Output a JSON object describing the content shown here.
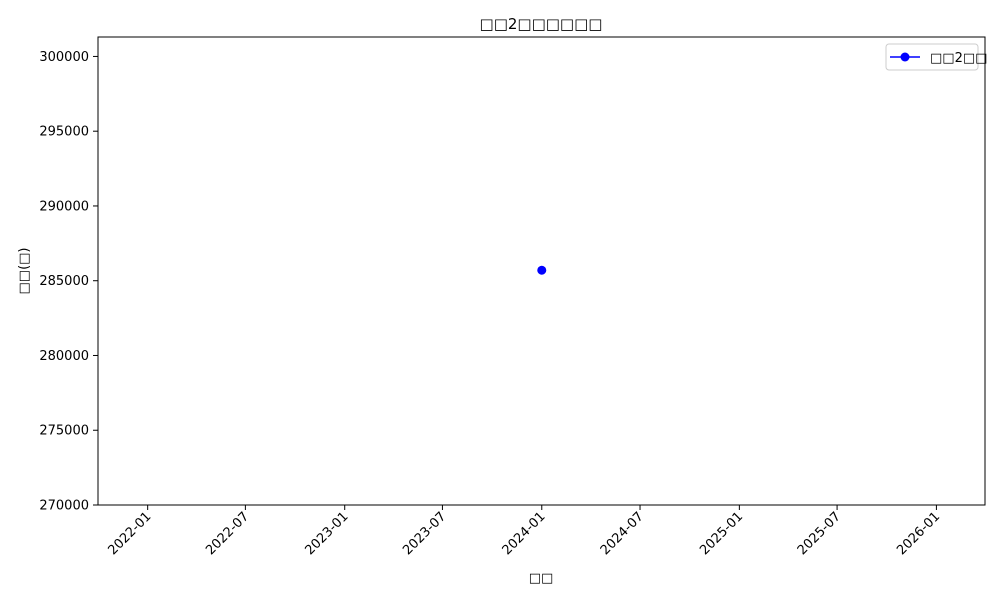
{
  "chart_data": {
    "type": "line",
    "title": "□□2□□□□□□",
    "xlabel": "□□",
    "ylabel": "□□(□)",
    "x_axis": {
      "kind": "date",
      "range": [
        "2021-10-01",
        "2026-04-01"
      ],
      "ticks": [
        "2022-01",
        "2022-07",
        "2023-01",
        "2023-07",
        "2024-01",
        "2024-07",
        "2025-01",
        "2025-07",
        "2026-01"
      ]
    },
    "y_axis": {
      "range": [
        270000,
        301300
      ],
      "ticks": [
        "270000",
        "275000",
        "280000",
        "285000",
        "290000",
        "295000",
        "300000"
      ]
    },
    "series": [
      {
        "name": "□□2□□",
        "color": "#0000ff",
        "marker": "circle",
        "points": [
          {
            "x": "2024-01-01",
            "y": 285700
          }
        ]
      }
    ],
    "legend_position": "top-right",
    "grid": false
  }
}
